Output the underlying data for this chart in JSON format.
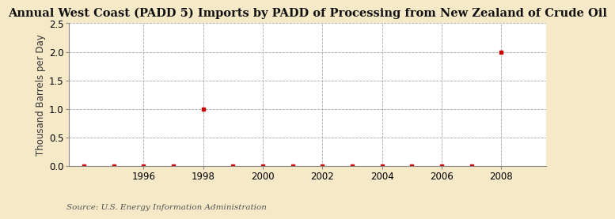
{
  "title": "Annual West Coast (PADD 5) Imports by PADD of Processing from New Zealand of Crude Oil",
  "ylabel": "Thousand Barrels per Day",
  "source": "Source: U.S. Energy Information Administration",
  "outer_background_color": "#f5e9c8",
  "plot_background_color": "#ffffff",
  "data_points": [
    [
      1994,
      0.0
    ],
    [
      1995,
      0.0
    ],
    [
      1996,
      0.0
    ],
    [
      1997,
      0.0
    ],
    [
      1998,
      1.0
    ],
    [
      1999,
      0.0
    ],
    [
      2000,
      0.0
    ],
    [
      2001,
      0.0
    ],
    [
      2002,
      0.0
    ],
    [
      2003,
      0.0
    ],
    [
      2004,
      0.0
    ],
    [
      2005,
      0.0
    ],
    [
      2006,
      0.0
    ],
    [
      2007,
      0.0
    ],
    [
      2008,
      2.0
    ]
  ],
  "marker_color": "#cc0000",
  "marker_size": 3,
  "marker_style": "s",
  "xlim": [
    1993.5,
    2009.5
  ],
  "ylim": [
    0.0,
    2.5
  ],
  "yticks": [
    0.0,
    0.5,
    1.0,
    1.5,
    2.0,
    2.5
  ],
  "xticks": [
    1996,
    1998,
    2000,
    2002,
    2004,
    2006,
    2008
  ],
  "grid_color": "#aaaaaa",
  "grid_style": "--",
  "title_fontsize": 10.5,
  "label_fontsize": 8.5,
  "tick_fontsize": 8.5,
  "source_fontsize": 7.5
}
